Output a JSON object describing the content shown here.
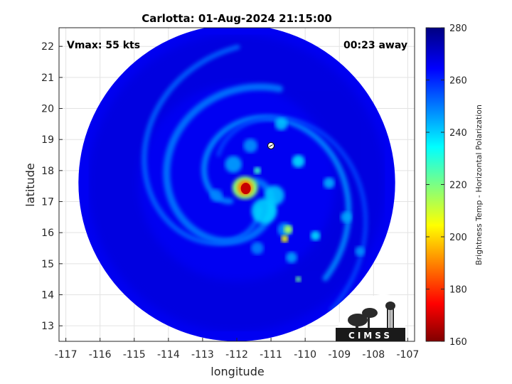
{
  "title": "Carlotta: 01-Aug-2024 21:15:00",
  "annotations": {
    "vmax": "Vmax: 55 kts",
    "away": "00:23 away"
  },
  "axes": {
    "xlabel": "longitude",
    "ylabel": "latitude",
    "xlim": [
      -117.2,
      -106.8
    ],
    "ylim": [
      12.5,
      22.6
    ],
    "xticks": [
      -117,
      -116,
      -115,
      -114,
      -113,
      -112,
      -111,
      -110,
      -109,
      -108,
      -107
    ],
    "yticks": [
      13,
      14,
      15,
      16,
      17,
      18,
      19,
      20,
      21,
      22
    ],
    "grid": true
  },
  "colorbar": {
    "label": "Brightness Temp - Horizontal Polarization",
    "min": 160,
    "max": 280,
    "ticks": [
      160,
      180,
      200,
      220,
      240,
      260,
      280
    ],
    "colormap": "jet"
  },
  "storm": {
    "center_lon": -111.8,
    "center_lat": 17.4,
    "swath_center_lon": -112.0,
    "swath_center_lat": 17.6,
    "swath_radius_deg": 5.1,
    "background_tb": 266,
    "marker_lon": -111.0,
    "marker_lat": 18.8
  },
  "logo": {
    "text": "CIMSS",
    "icon": "cimss-logo-icon"
  }
}
